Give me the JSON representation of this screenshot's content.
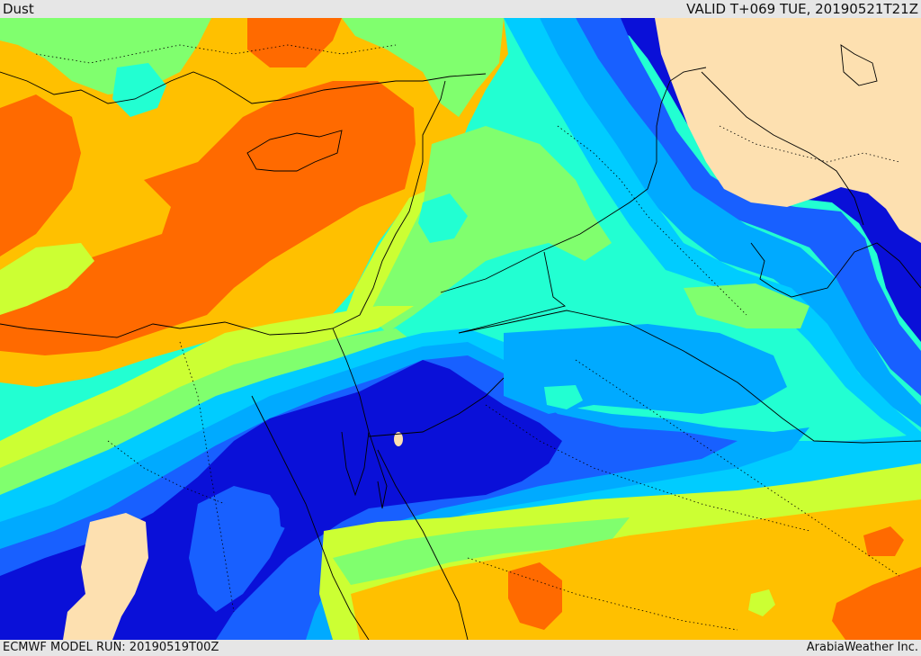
{
  "header": {
    "title": "Dust",
    "valid_time": "VALID T+069 TUE, 20190521T21Z"
  },
  "footer": {
    "model_run": "ECMWF MODEL RUN: 20190519T00Z",
    "credit": "ArabiaWeather Inc."
  },
  "palette": {
    "land_clear": "#fde0b0",
    "dark_blue": "#0a10d8",
    "blue": "#1860ff",
    "mid_blue": "#00aaff",
    "light_blue": "#00ccff",
    "cyan": "#22ffd2",
    "green": "#80ff6e",
    "yellow_green": "#ccff33",
    "yellow": "#ffc000",
    "orange": "#ff6a00",
    "border": "#000000"
  }
}
